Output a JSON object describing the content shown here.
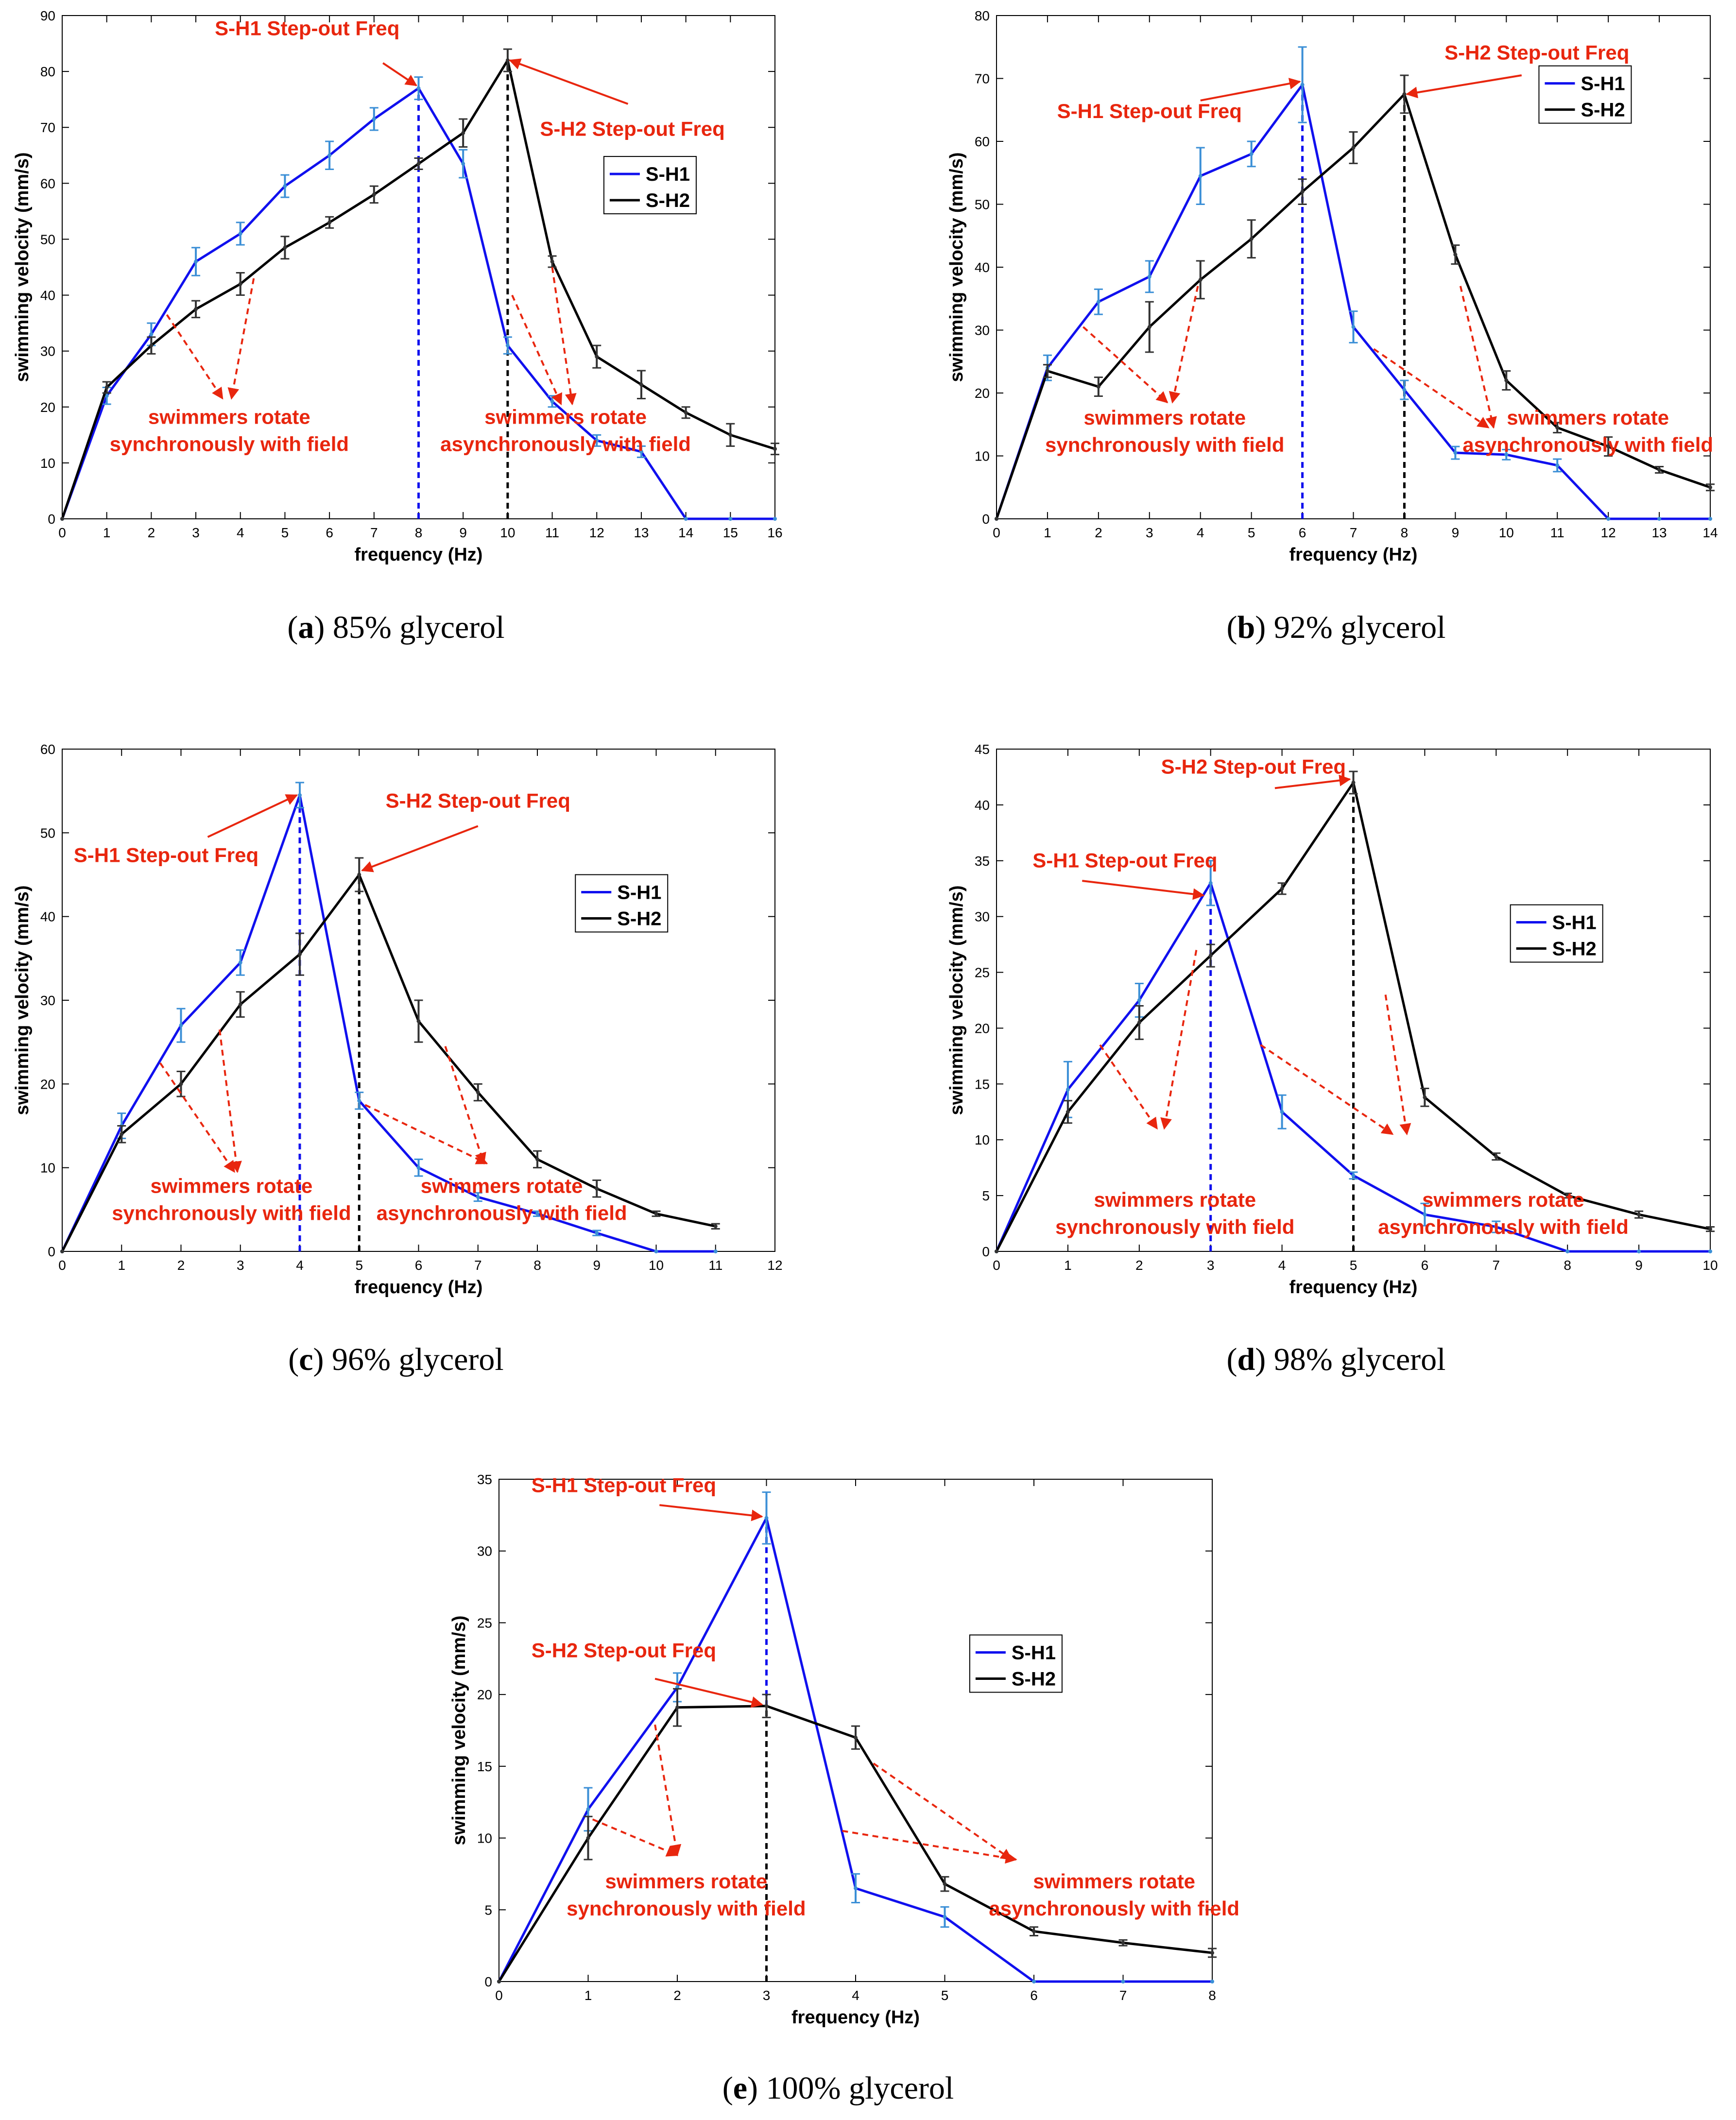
{
  "colors": {
    "s_h1": "#1010ee",
    "s_h2": "#000000",
    "annotation": "#e8260e",
    "errbar_h1": "#3b8fd6",
    "errbar_h2": "#333333"
  },
  "chart_data": [
    {
      "type": "line",
      "id": "a",
      "caption_letter": "a",
      "caption_rest": "85% glycerol",
      "xlabel": "frequency (Hz)",
      "ylabel": "swimming velocity (mm/s)",
      "xlim": [
        0,
        16
      ],
      "ylim": [
        0,
        90
      ],
      "xticks": [
        0,
        1,
        2,
        3,
        4,
        5,
        6,
        7,
        8,
        9,
        10,
        11,
        12,
        13,
        14,
        15,
        16
      ],
      "yticks": [
        0,
        10,
        20,
        30,
        40,
        50,
        60,
        70,
        80,
        90
      ],
      "legend": [
        "S-H1",
        "S-H2"
      ],
      "series": [
        {
          "name": "S-H1",
          "x": [
            0,
            1,
            2,
            3,
            4,
            5,
            6,
            7,
            8,
            9,
            10,
            11,
            12,
            13,
            14,
            15,
            16
          ],
          "values": [
            0,
            22,
            33,
            46,
            51,
            59.5,
            65,
            71.5,
            77,
            63.5,
            31,
            21,
            14,
            12,
            0,
            0,
            0
          ],
          "err": [
            0,
            1.5,
            2,
            2.5,
            2,
            2,
            2.5,
            2,
            2,
            2.5,
            1.5,
            1,
            1,
            1,
            0,
            0,
            0
          ]
        },
        {
          "name": "S-H2",
          "x": [
            0,
            1,
            2,
            3,
            4,
            5,
            6,
            7,
            8,
            9,
            10,
            11,
            12,
            13,
            14,
            15,
            16
          ],
          "values": [
            0,
            23.5,
            31,
            37.5,
            42,
            48.5,
            53,
            58,
            63.5,
            69,
            82,
            46,
            29,
            24,
            19,
            15,
            12.5
          ],
          "err": [
            0,
            1,
            1.5,
            1.5,
            2,
            2,
            1,
            1.5,
            1,
            2.5,
            2,
            1,
            2,
            2.5,
            1,
            2,
            1
          ]
        }
      ],
      "stepout": [
        {
          "x": 10,
          "y": 82,
          "series": "S-H2"
        },
        {
          "x": 8,
          "y": 77,
          "series": "S-H1"
        }
      ],
      "annotations": [
        {
          "id": "h1-step",
          "lines": [
            "S-H1 Step-out Freq"
          ]
        },
        {
          "id": "h2-step",
          "lines": [
            "S-H2 Step-out Freq"
          ]
        },
        {
          "id": "sync",
          "lines": [
            "swimmers rotate",
            "synchronously with field"
          ]
        },
        {
          "id": "async",
          "lines": [
            "swimmers rotate",
            "asynchronously with field"
          ]
        }
      ]
    },
    {
      "type": "line",
      "id": "b",
      "caption_letter": "b",
      "caption_rest": "92% glycerol",
      "xlabel": "frequency (Hz)",
      "ylabel": "swimming velocity (mm/s)",
      "xlim": [
        0,
        14
      ],
      "ylim": [
        0,
        80
      ],
      "xticks": [
        0,
        1,
        2,
        3,
        4,
        5,
        6,
        7,
        8,
        9,
        10,
        11,
        12,
        13,
        14
      ],
      "yticks": [
        0,
        10,
        20,
        30,
        40,
        50,
        60,
        70,
        80
      ],
      "legend": [
        "S-H1",
        "S-H2"
      ],
      "series": [
        {
          "name": "S-H1",
          "x": [
            0,
            1,
            2,
            3,
            4,
            5,
            6,
            7,
            8,
            9,
            10,
            11,
            12,
            13,
            14
          ],
          "values": [
            0,
            24,
            34.5,
            38.5,
            54.5,
            58,
            69,
            30.5,
            20.5,
            10.5,
            10.2,
            8.5,
            0,
            0,
            0
          ],
          "err": [
            0,
            2,
            2,
            2.5,
            4.5,
            2,
            6,
            2.5,
            1.5,
            1,
            0.8,
            1,
            0,
            0,
            0
          ]
        },
        {
          "name": "S-H2",
          "x": [
            0,
            1,
            2,
            3,
            4,
            5,
            6,
            7,
            8,
            9,
            10,
            11,
            12,
            13,
            14
          ],
          "values": [
            0,
            23.5,
            21,
            30.5,
            38,
            44.5,
            52,
            59,
            67.5,
            42,
            22,
            14.5,
            11.5,
            7.8,
            5
          ],
          "err": [
            0,
            1,
            1.5,
            4,
            3,
            3,
            2,
            2.5,
            3,
            1.5,
            1.5,
            0.8,
            1.5,
            0.5,
            0.5
          ]
        }
      ],
      "stepout": [
        {
          "x": 6,
          "y": 69,
          "series": "S-H1"
        },
        {
          "x": 8,
          "y": 67.5,
          "series": "S-H2"
        }
      ],
      "annotations": [
        {
          "id": "h1-step",
          "lines": [
            "S-H1 Step-out Freq"
          ]
        },
        {
          "id": "h2-step",
          "lines": [
            "S-H2 Step-out Freq"
          ]
        },
        {
          "id": "sync",
          "lines": [
            "swimmers rotate",
            "synchronously with field"
          ]
        },
        {
          "id": "async",
          "lines": [
            "swimmers rotate",
            "asynchronously with field"
          ]
        }
      ]
    },
    {
      "type": "line",
      "id": "c",
      "caption_letter": "c",
      "caption_rest": "96% glycerol",
      "xlabel": "frequency (Hz)",
      "ylabel": "swimming velocity (mm/s)",
      "xlim": [
        0,
        12
      ],
      "ylim": [
        0,
        60
      ],
      "xticks": [
        0,
        1,
        2,
        3,
        4,
        5,
        6,
        7,
        8,
        9,
        10,
        11,
        12
      ],
      "yticks": [
        0,
        10,
        20,
        30,
        40,
        50,
        60
      ],
      "legend": [
        "S-H1",
        "S-H2"
      ],
      "series": [
        {
          "name": "S-H1",
          "x": [
            0,
            1,
            2,
            3,
            4,
            5,
            6,
            7,
            8,
            9,
            10,
            11
          ],
          "values": [
            0,
            15,
            27,
            34.5,
            54.5,
            18,
            10,
            6.5,
            4.5,
            2.2,
            0,
            0
          ],
          "err": [
            0,
            1.5,
            2,
            1.5,
            1.5,
            1,
            1,
            0.5,
            0.3,
            0.3,
            0,
            0
          ]
        },
        {
          "name": "S-H2",
          "x": [
            0,
            1,
            2,
            3,
            4,
            5,
            6,
            7,
            8,
            9,
            10,
            11
          ],
          "values": [
            0,
            14,
            20,
            29.5,
            35.5,
            45,
            27.5,
            19,
            11,
            7.5,
            4.5,
            3
          ],
          "err": [
            0,
            1,
            1.5,
            1.5,
            2.5,
            2,
            2.5,
            1,
            1,
            1,
            0.3,
            0.3
          ]
        }
      ],
      "stepout": [
        {
          "x": 4,
          "y": 54.5,
          "series": "S-H1"
        },
        {
          "x": 5,
          "y": 45,
          "series": "S-H2"
        }
      ],
      "annotations": [
        {
          "id": "h1-step",
          "lines": [
            "S-H1 Step-out Freq"
          ]
        },
        {
          "id": "h2-step",
          "lines": [
            "S-H2 Step-out Freq"
          ]
        },
        {
          "id": "sync",
          "lines": [
            "swimmers rotate",
            "synchronously with field"
          ]
        },
        {
          "id": "async",
          "lines": [
            "swimmers rotate",
            "asynchronously with field"
          ]
        }
      ]
    },
    {
      "type": "line",
      "id": "d",
      "caption_letter": "d",
      "caption_rest": "98% glycerol",
      "xlabel": "frequency (Hz)",
      "ylabel": "swimming velocity (mm/s)",
      "xlim": [
        0,
        10
      ],
      "ylim": [
        0,
        45
      ],
      "xticks": [
        0,
        1,
        2,
        3,
        4,
        5,
        6,
        7,
        8,
        9,
        10
      ],
      "yticks": [
        0,
        5,
        10,
        15,
        20,
        25,
        30,
        35,
        40,
        45
      ],
      "legend": [
        "S-H1",
        "S-H2"
      ],
      "series": [
        {
          "name": "S-H1",
          "x": [
            0,
            1,
            2,
            3,
            4,
            5,
            6,
            7,
            8,
            9,
            10
          ],
          "values": [
            0,
            14.5,
            22.5,
            33,
            12.5,
            6.8,
            3.3,
            2.2,
            0,
            0,
            0
          ],
          "err": [
            0,
            2.5,
            1.5,
            2,
            1.5,
            0.3,
            1,
            0.5,
            0,
            0,
            0
          ]
        },
        {
          "name": "S-H2",
          "x": [
            0,
            1,
            2,
            3,
            4,
            5,
            6,
            7,
            8,
            9,
            10
          ],
          "values": [
            0,
            12.5,
            20.5,
            26.5,
            32.5,
            42,
            13.8,
            8.5,
            5,
            3.3,
            2
          ],
          "err": [
            0,
            1,
            1.5,
            1,
            0.5,
            1,
            0.8,
            0.3,
            0.2,
            0.3,
            0.2
          ]
        }
      ],
      "stepout": [
        {
          "x": 5,
          "y": 42,
          "series": "S-H2"
        },
        {
          "x": 3,
          "y": 33,
          "series": "S-H1"
        }
      ],
      "annotations": [
        {
          "id": "h2-step",
          "lines": [
            "S-H2 Step-out Freq"
          ]
        },
        {
          "id": "h1-step",
          "lines": [
            "S-H1 Step-out Freq"
          ]
        },
        {
          "id": "sync",
          "lines": [
            "swimmers rotate",
            "synchronously with field"
          ]
        },
        {
          "id": "async",
          "lines": [
            "swimmers rotate",
            "asynchronously with field"
          ]
        }
      ]
    },
    {
      "type": "line",
      "id": "e",
      "caption_letter": "e",
      "caption_rest": "100% glycerol",
      "xlabel": "frequency (Hz)",
      "ylabel": "swimming velocity (mm/s)",
      "xlim": [
        0,
        8
      ],
      "ylim": [
        0,
        35
      ],
      "xticks": [
        0,
        1,
        2,
        3,
        4,
        5,
        6,
        7,
        8
      ],
      "yticks": [
        0,
        5,
        10,
        15,
        20,
        25,
        30,
        35
      ],
      "legend": [
        "S-H1",
        "S-H2"
      ],
      "series": [
        {
          "name": "S-H1",
          "x": [
            0,
            1,
            2,
            3,
            4,
            5,
            6,
            7,
            8
          ],
          "values": [
            0,
            12,
            20.5,
            32.3,
            6.5,
            4.5,
            0,
            0,
            0
          ],
          "err": [
            0,
            1.5,
            1,
            1.8,
            1,
            0.7,
            0,
            0,
            0
          ]
        },
        {
          "name": "S-H2",
          "x": [
            0,
            1,
            2,
            3,
            4,
            5,
            6,
            7,
            8
          ],
          "values": [
            0,
            10,
            19.1,
            19.2,
            17,
            6.8,
            3.5,
            2.7,
            2
          ],
          "err": [
            0,
            1.5,
            1.3,
            0.8,
            0.8,
            0.5,
            0.3,
            0.2,
            0.3
          ]
        }
      ],
      "stepout": [
        {
          "x": 3,
          "y": 32.3,
          "series": "S-H1"
        },
        {
          "x": 3,
          "y": 19.2,
          "series": "S-H2"
        }
      ],
      "annotations": [
        {
          "id": "h1-step",
          "lines": [
            "S-H1 Step-out Freq"
          ]
        },
        {
          "id": "h2-step",
          "lines": [
            "S-H2 Step-out Freq"
          ]
        },
        {
          "id": "sync",
          "lines": [
            "swimmers rotate",
            "synchronously with field"
          ]
        },
        {
          "id": "async",
          "lines": [
            "swimmers rotate",
            "asynchronously with field"
          ]
        }
      ]
    }
  ]
}
